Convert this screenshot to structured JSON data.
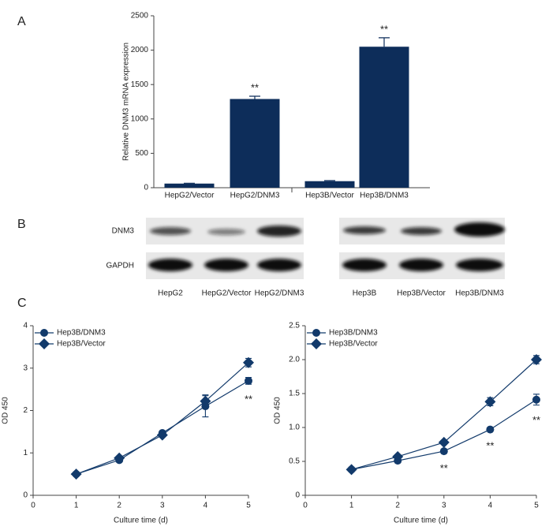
{
  "chart_data": [
    {
      "type": "bar",
      "panel_label": "A",
      "ylabel": "Relative DNM3 mRNA expression",
      "categories": [
        "HepG2/Vector",
        "HepG2/DNM3",
        "Hep3B/Vector",
        "Hep3B/DNM3"
      ],
      "values": [
        60,
        1290,
        95,
        2050
      ],
      "errors": [
        5,
        40,
        8,
        130
      ],
      "significance": [
        null,
        "**",
        null,
        "**"
      ],
      "color": "#0d2d5a",
      "ylim": [
        0,
        2500
      ],
      "yticks": [
        0,
        500,
        1000,
        1500,
        2000,
        2500
      ]
    },
    {
      "type": "line",
      "panel_label": "C",
      "xlabel": "Culture time (d)",
      "ylabel": "OD 450",
      "legend": "upper left",
      "x": [
        1,
        2,
        3,
        4,
        5
      ],
      "xlim": [
        0,
        5
      ],
      "xticks": [
        0,
        1,
        2,
        3,
        4,
        5
      ],
      "ylim": [
        0,
        4
      ],
      "yticks": [
        0,
        1,
        2,
        3,
        4
      ],
      "series": [
        {
          "name": "Hep3B/DNM3",
          "marker": "circle",
          "color": "#123a6b",
          "values": [
            0.5,
            0.83,
            1.47,
            2.1,
            2.7
          ],
          "errors": [
            0.02,
            0.03,
            0.04,
            0.25,
            0.08
          ],
          "significance": [
            null,
            null,
            null,
            null,
            "**"
          ]
        },
        {
          "name": "Hep3B/Vector",
          "marker": "diamond",
          "color": "#123a6b",
          "values": [
            0.5,
            0.88,
            1.42,
            2.22,
            3.13
          ],
          "errors": [
            0.02,
            0.03,
            0.03,
            0.15,
            0.1
          ]
        }
      ]
    },
    {
      "type": "line",
      "xlabel": "Culture time (d)",
      "ylabel": "OD 450",
      "legend": "upper left",
      "x": [
        1,
        2,
        3,
        4,
        5
      ],
      "xlim": [
        0,
        5
      ],
      "xticks": [
        0,
        1,
        2,
        3,
        4,
        5
      ],
      "ylim": [
        0,
        2.5
      ],
      "yticks": [
        0,
        0.5,
        {
          "value": 1,
          "label": "1.0"
        },
        1.5,
        {
          "value": 2,
          "label": "2.0"
        },
        2.5
      ],
      "series": [
        {
          "name": "Hep3B/DNM3",
          "marker": "circle",
          "color": "#123a6b",
          "values": [
            0.38,
            0.51,
            0.65,
            0.97,
            1.41
          ],
          "errors": [
            0.02,
            0.02,
            0.03,
            0.02,
            0.08
          ],
          "significance": [
            null,
            null,
            "**",
            "**",
            "**"
          ]
        },
        {
          "name": "Hep3B/Vector",
          "marker": "diamond",
          "color": "#123a6b",
          "values": [
            0.38,
            0.57,
            0.78,
            1.38,
            2.0
          ],
          "errors": [
            0.02,
            0.02,
            0.03,
            0.06,
            0.06
          ]
        }
      ]
    }
  ],
  "blot": {
    "panel_label": "B",
    "rows": [
      "DNM3",
      "GAPDH"
    ],
    "lanes": [
      [
        "HepG2",
        "HepG2/Vector",
        "HepG2/DNM3"
      ],
      [
        "Hep3B",
        "Hep3B/Vector",
        "Hep3B/DNM3"
      ]
    ]
  }
}
